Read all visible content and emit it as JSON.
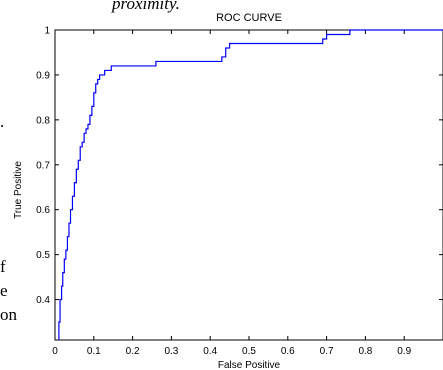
{
  "text_fragments": {
    "top": "proximity.",
    "line1": ".",
    "line2": "f",
    "line3": "e",
    "line4": "on"
  },
  "chart_data": {
    "type": "line",
    "title": "ROC CURVE",
    "xlabel": "False Positive",
    "ylabel": "True Positive",
    "xlim": [
      0,
      1
    ],
    "ylim": [
      0.31,
      1
    ],
    "xticks": [
      "0",
      "0.1",
      "0.2",
      "0.3",
      "0.4",
      "0.5",
      "0.6",
      "0.7",
      "0.8",
      "0.9"
    ],
    "yticks": [
      "0.4",
      "0.5",
      "0.6",
      "0.7",
      "0.8",
      "0.9",
      "1"
    ],
    "grid": false,
    "line_color": "#0000ff",
    "series": [
      {
        "x": [
          0.01,
          0.01,
          0.013,
          0.013,
          0.017,
          0.017,
          0.02,
          0.02,
          0.024,
          0.024,
          0.028,
          0.028,
          0.032,
          0.032,
          0.036,
          0.036,
          0.04,
          0.04,
          0.045,
          0.045,
          0.05,
          0.05,
          0.055,
          0.055,
          0.06,
          0.06,
          0.065,
          0.065,
          0.07,
          0.07,
          0.075,
          0.075,
          0.08,
          0.08,
          0.085,
          0.085,
          0.09,
          0.09,
          0.095,
          0.095,
          0.1,
          0.1,
          0.105,
          0.105,
          0.11,
          0.11,
          0.115,
          0.115,
          0.12,
          0.12,
          0.128,
          0.128,
          0.135,
          0.135,
          0.145,
          0.145,
          0.155,
          0.155,
          0.165,
          0.165,
          0.26,
          0.26,
          0.43,
          0.43,
          0.44,
          0.44,
          0.45,
          0.45,
          0.46,
          0.46,
          0.69,
          0.69,
          0.7,
          0.7,
          0.76,
          0.76,
          1.0
        ],
        "y": [
          0.31,
          0.35,
          0.35,
          0.4,
          0.4,
          0.43,
          0.43,
          0.46,
          0.46,
          0.49,
          0.49,
          0.51,
          0.51,
          0.54,
          0.54,
          0.57,
          0.57,
          0.6,
          0.6,
          0.63,
          0.63,
          0.66,
          0.66,
          0.69,
          0.69,
          0.71,
          0.71,
          0.74,
          0.74,
          0.75,
          0.75,
          0.77,
          0.77,
          0.78,
          0.78,
          0.79,
          0.79,
          0.81,
          0.81,
          0.83,
          0.83,
          0.86,
          0.86,
          0.88,
          0.88,
          0.89,
          0.89,
          0.9,
          0.9,
          0.9,
          0.9,
          0.91,
          0.91,
          0.91,
          0.91,
          0.92,
          0.92,
          0.92,
          0.92,
          0.92,
          0.92,
          0.93,
          0.93,
          0.94,
          0.94,
          0.96,
          0.96,
          0.97,
          0.97,
          0.97,
          0.97,
          0.98,
          0.98,
          0.99,
          0.99,
          1.0,
          1.0
        ]
      }
    ]
  }
}
